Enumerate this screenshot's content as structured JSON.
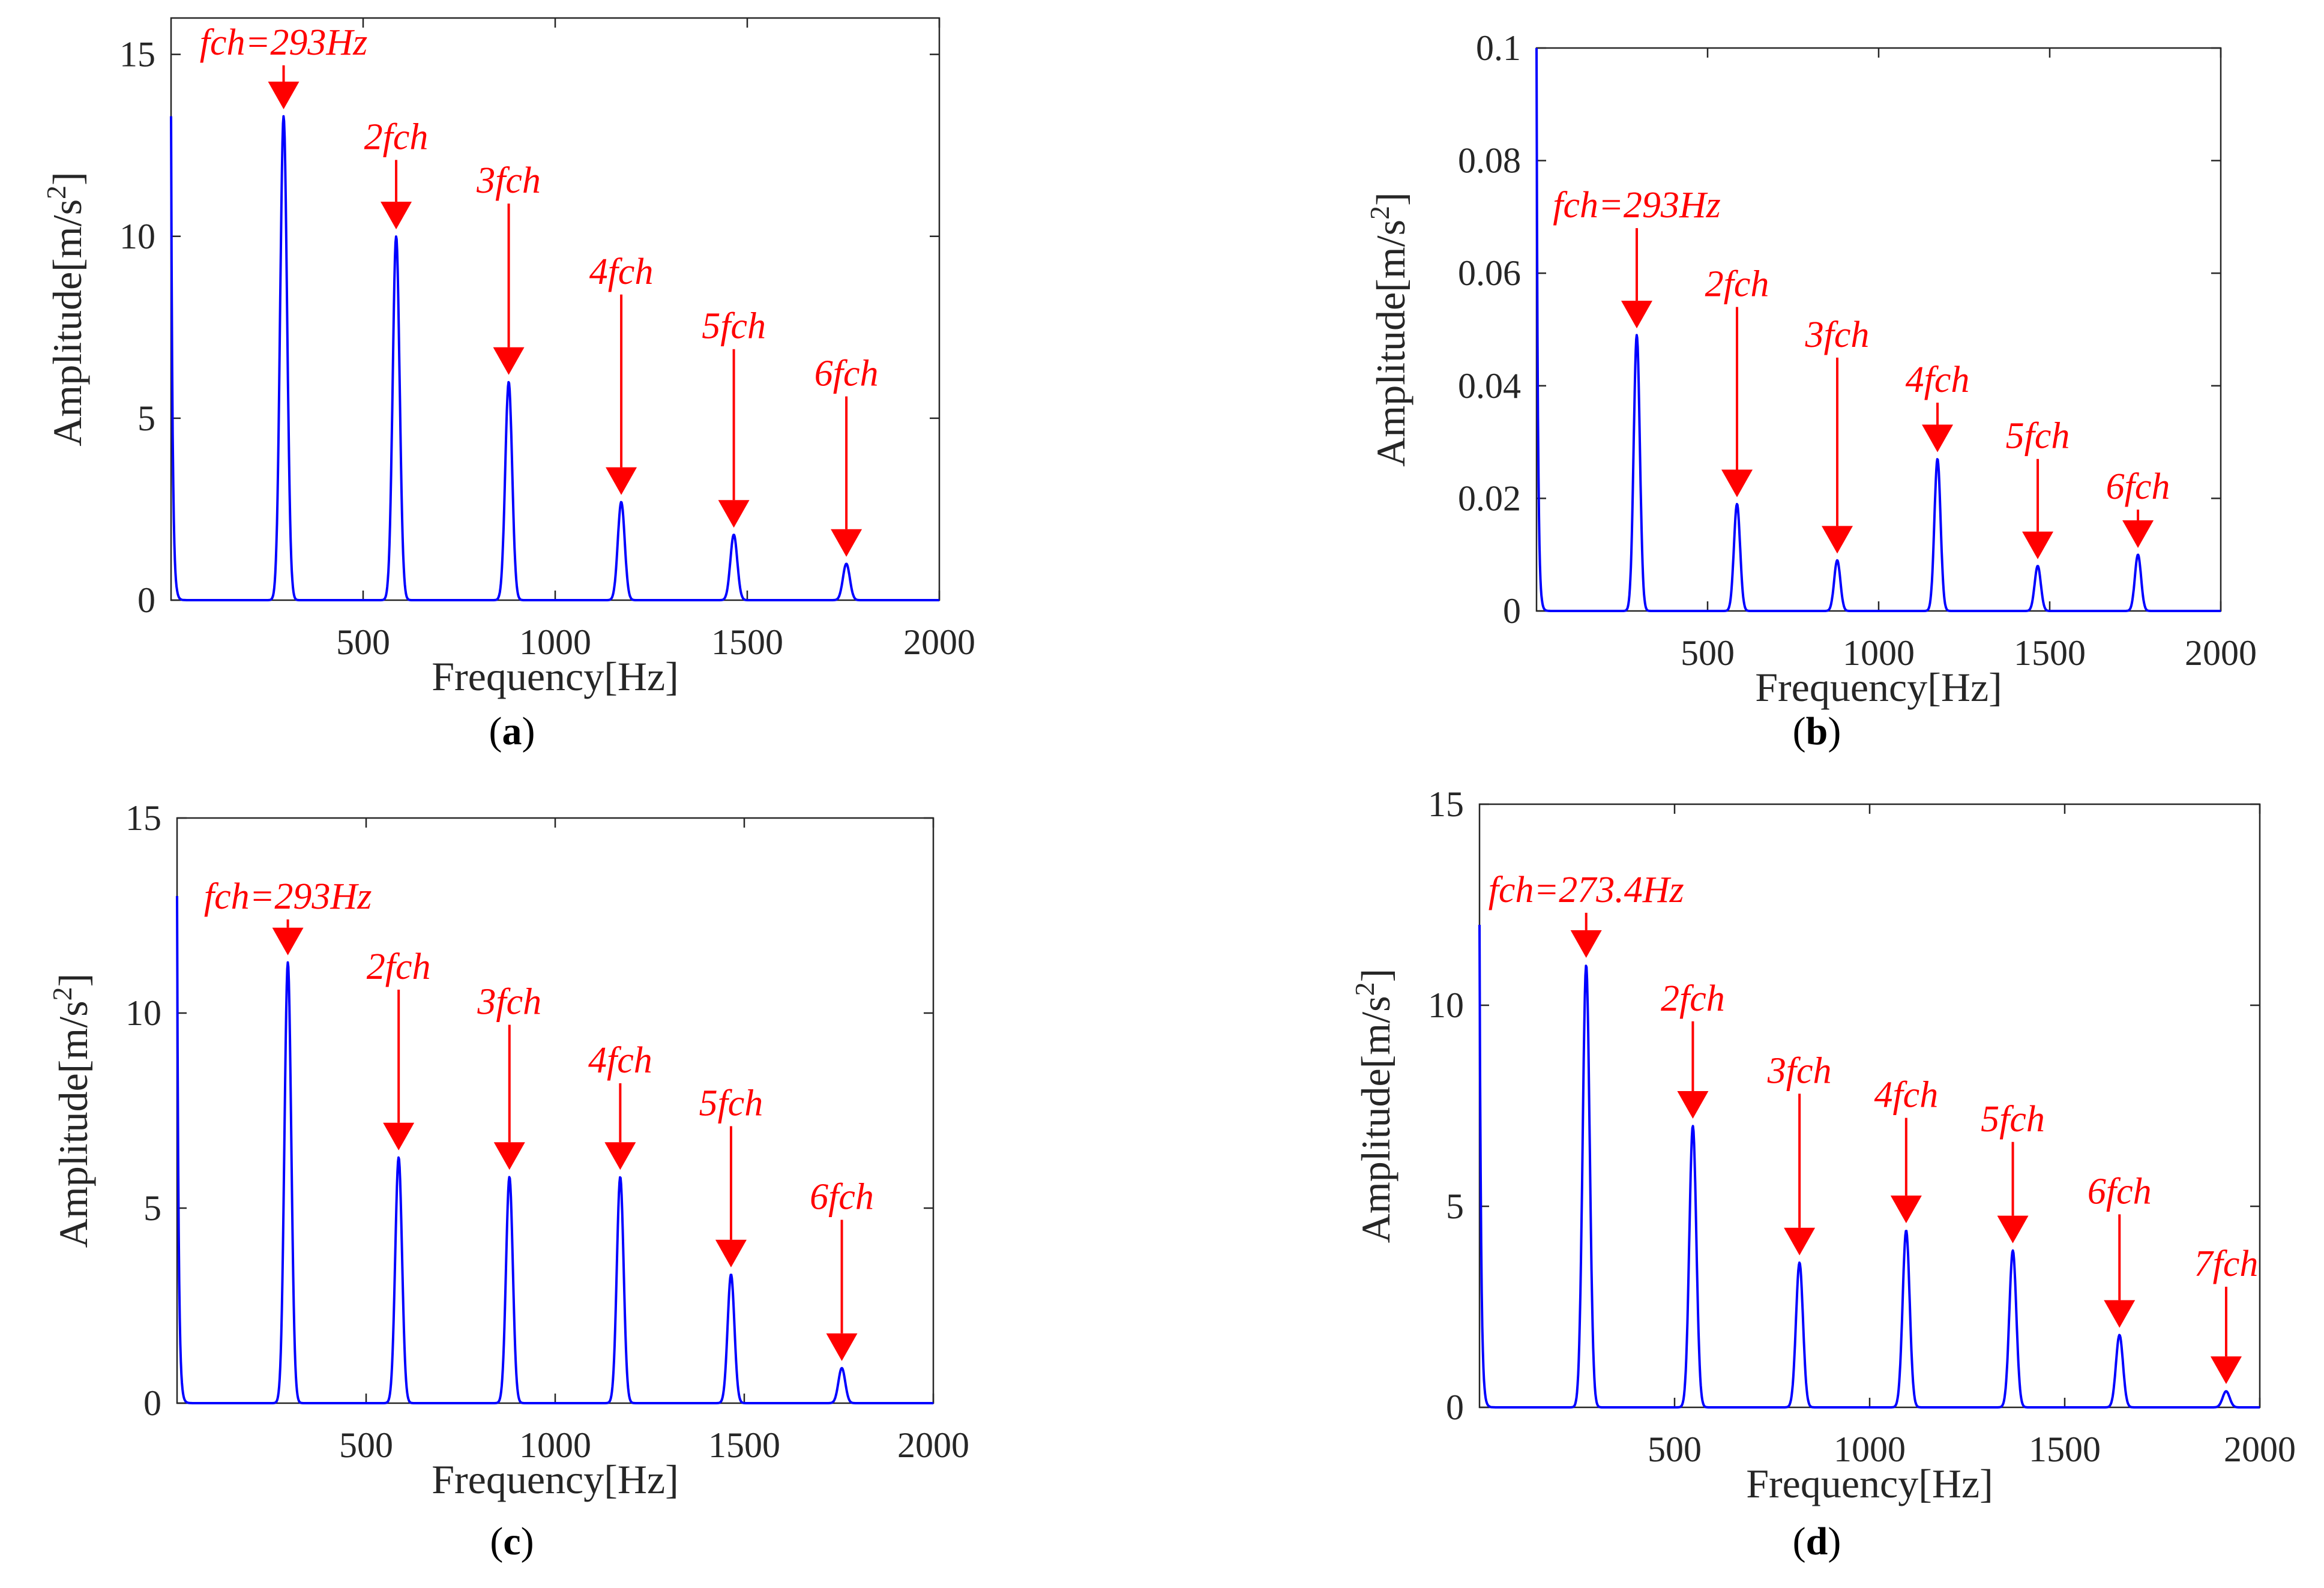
{
  "chart_data": [
    {
      "type": "line",
      "caption_letter": "a",
      "xlabel": "Frequency[Hz]",
      "ylabel": "Amplitude[m/s",
      "ylabel_sup": "2",
      "ylabel_end": "]",
      "xlim": [
        0,
        2000
      ],
      "ylim": [
        0,
        16
      ],
      "xticks": [
        500,
        1000,
        1500,
        2000
      ],
      "yticks": [
        0,
        5,
        10,
        15
      ],
      "ytick_labels": [
        "0",
        "5",
        "10",
        "15"
      ],
      "line_color": "#0000ff",
      "arrow_color": "#ff0000",
      "fundamental_hz": 293,
      "start_value": 13.3,
      "peaks": [
        {
          "label": "fch=293Hz",
          "freq": 293,
          "amp": 13.3,
          "arrow_top": 14.7
        },
        {
          "label": "2fch",
          "freq": 586,
          "amp": 10.0,
          "arrow_top": 12.1
        },
        {
          "label": "3fch",
          "freq": 879,
          "amp": 6.0,
          "arrow_top": 10.9
        },
        {
          "label": "4fch",
          "freq": 1172,
          "amp": 2.7,
          "arrow_top": 8.4
        },
        {
          "label": "5fch",
          "freq": 1465,
          "amp": 1.8,
          "arrow_top": 6.9
        },
        {
          "label": "6fch",
          "freq": 1758,
          "amp": 1.0,
          "arrow_top": 5.6
        }
      ]
    },
    {
      "type": "line",
      "caption_letter": "b",
      "xlabel": "Frequency[Hz]",
      "ylabel": "Amplitude[m/s",
      "ylabel_sup": "2",
      "ylabel_end": "]",
      "xlim": [
        0,
        2000
      ],
      "ylim": [
        0,
        0.1
      ],
      "xticks": [
        500,
        1000,
        1500,
        2000
      ],
      "yticks": [
        0,
        0.02,
        0.04,
        0.06,
        0.08,
        0.1
      ],
      "ytick_labels": [
        "0",
        "0.02",
        "0.04",
        "0.06",
        "0.08",
        "0.1"
      ],
      "line_color": "#0000ff",
      "arrow_color": "#ff0000",
      "fundamental_hz": 293,
      "start_value": 0.1,
      "peaks": [
        {
          "label": "fch=293Hz",
          "freq": 293,
          "amp": 0.049,
          "arrow_top": 0.068
        },
        {
          "label": "2fch",
          "freq": 586,
          "amp": 0.019,
          "arrow_top": 0.054
        },
        {
          "label": "3fch",
          "freq": 879,
          "amp": 0.009,
          "arrow_top": 0.045
        },
        {
          "label": "4fch",
          "freq": 1172,
          "amp": 0.027,
          "arrow_top": 0.037
        },
        {
          "label": "5fch",
          "freq": 1465,
          "amp": 0.008,
          "arrow_top": 0.027
        },
        {
          "label": "6fch",
          "freq": 1758,
          "amp": 0.01,
          "arrow_top": 0.018
        }
      ]
    },
    {
      "type": "line",
      "caption_letter": "c",
      "xlabel": "Frequency[Hz]",
      "ylabel": "Amplitude[m/s",
      "ylabel_sup": "2",
      "ylabel_end": "]",
      "xlim": [
        0,
        2000
      ],
      "ylim": [
        0,
        15
      ],
      "xticks": [
        500,
        1000,
        1500,
        2000
      ],
      "yticks": [
        0,
        5,
        10,
        15
      ],
      "ytick_labels": [
        "0",
        "5",
        "10",
        "15"
      ],
      "line_color": "#0000ff",
      "arrow_color": "#ff0000",
      "fundamental_hz": 293,
      "start_value": 13.0,
      "peaks": [
        {
          "label": "fch=293Hz",
          "freq": 293,
          "amp": 11.3,
          "arrow_top": 12.4
        },
        {
          "label": "2fch",
          "freq": 586,
          "amp": 6.3,
          "arrow_top": 10.6
        },
        {
          "label": "3fch",
          "freq": 879,
          "amp": 5.8,
          "arrow_top": 9.7
        },
        {
          "label": "4fch",
          "freq": 1172,
          "amp": 5.8,
          "arrow_top": 8.2
        },
        {
          "label": "5fch",
          "freq": 1465,
          "amp": 3.3,
          "arrow_top": 7.1
        },
        {
          "label": "6fch",
          "freq": 1758,
          "amp": 0.9,
          "arrow_top": 4.7
        }
      ]
    },
    {
      "type": "line",
      "caption_letter": "d",
      "xlabel": "Frequency[Hz]",
      "ylabel": "Amplitude[m/s",
      "ylabel_sup": "2",
      "ylabel_end": "]",
      "xlim": [
        0,
        2000
      ],
      "ylim": [
        0,
        15
      ],
      "xticks": [
        500,
        1000,
        1500,
        2000
      ],
      "yticks": [
        0,
        5,
        10,
        15
      ],
      "ytick_labels": [
        "0",
        "5",
        "10",
        "15"
      ],
      "line_color": "#0000ff",
      "arrow_color": "#ff0000",
      "fundamental_hz": 273.4,
      "start_value": 12.0,
      "peaks": [
        {
          "label": "fch=273.4Hz",
          "freq": 273.4,
          "amp": 11.0,
          "arrow_top": 12.3
        },
        {
          "label": "2fch",
          "freq": 546.8,
          "amp": 7.0,
          "arrow_top": 9.6
        },
        {
          "label": "3fch",
          "freq": 820.2,
          "amp": 3.6,
          "arrow_top": 7.8
        },
        {
          "label": "4fch",
          "freq": 1093.6,
          "amp": 4.4,
          "arrow_top": 7.2
        },
        {
          "label": "5fch",
          "freq": 1367,
          "amp": 3.9,
          "arrow_top": 6.6
        },
        {
          "label": "6fch",
          "freq": 1640.4,
          "amp": 1.8,
          "arrow_top": 4.8
        },
        {
          "label": "7fch",
          "freq": 1913.8,
          "amp": 0.4,
          "arrow_top": 3.0
        }
      ]
    }
  ]
}
